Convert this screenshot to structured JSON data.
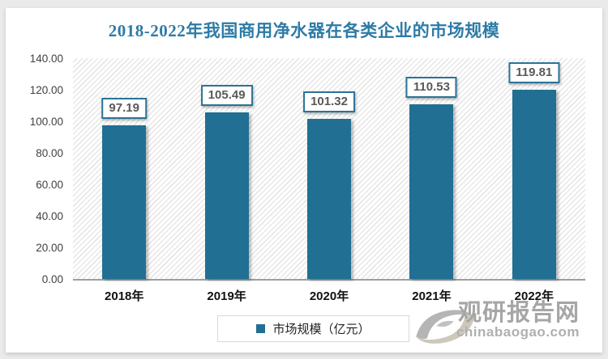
{
  "title": "2018-2022年我国商用净水器在各类企业的市场规模",
  "colors": {
    "bar": "#216f93",
    "title": "#2e7ba6",
    "label_border": "#2a7396",
    "label_text": "#595959",
    "axis_line": "#9e9e9e",
    "tick_text": "#404040",
    "watermark_text": "#a6a6a6"
  },
  "chart_data": {
    "type": "bar",
    "title": "2018-2022年我国商用净水器在各类企业的市场规模",
    "categories": [
      "2018年",
      "2019年",
      "2020年",
      "2021年",
      "2022年"
    ],
    "values": [
      97.19,
      105.49,
      101.32,
      110.53,
      119.81
    ],
    "data_labels": [
      "97.19",
      "105.49",
      "101.32",
      "110.53",
      "119.81"
    ],
    "xlabel": "",
    "ylabel": "",
    "ylim": [
      0,
      140
    ],
    "ytick_step": 20,
    "ytick_labels": [
      "0.00",
      "20.00",
      "40.00",
      "60.00",
      "80.00",
      "100.00",
      "120.00",
      "140.00"
    ],
    "grid": false,
    "plot_background": "diagonal-hatch",
    "legend_position": "bottom",
    "legend": [
      "市场规模（亿元）"
    ]
  },
  "legend": {
    "label": "市场规模（亿元）"
  },
  "watermark": {
    "logo": "swirl-eye-logo",
    "brand": "观研报告网",
    "domain": "chinabaogao.com"
  }
}
